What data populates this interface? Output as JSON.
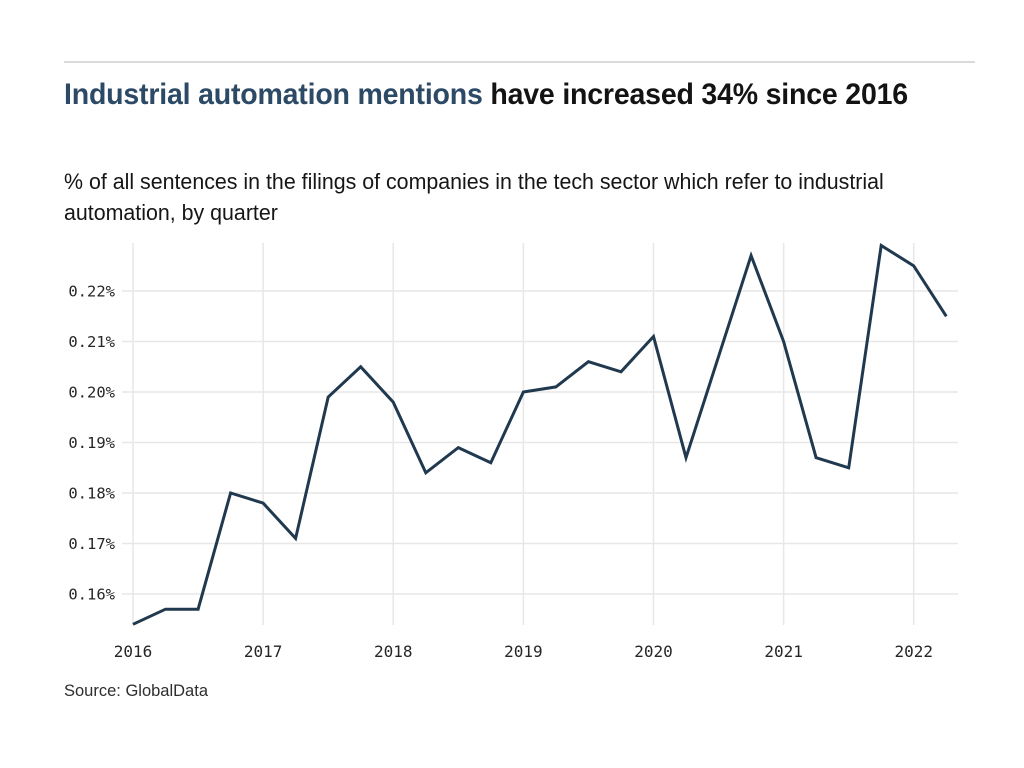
{
  "header": {
    "title_highlight": "Industrial automation mentions",
    "title_rest": " have increased 34% since 2016",
    "subtitle": "% of all sentences in the filings of companies in the tech sector which refer to industrial automation, by quarter"
  },
  "footer": {
    "source": "Source: GlobalData"
  },
  "colors": {
    "background": "#ffffff",
    "title_highlight": "#2c4a66",
    "heading_text": "#131313",
    "line": "#20394f",
    "grid": "#e7e7e7",
    "tick_label": "#262626",
    "rule": "#dadada",
    "source_text": "#2e2e2e"
  },
  "chart_data": {
    "type": "line",
    "title": "Industrial automation mentions have increased 34% since 2016",
    "subtitle": "% of all sentences in the filings of companies in the tech sector which refer to industrial automation, by quarter",
    "source": "Source: GlobalData",
    "unit": "%",
    "x": [
      "2016-Q1",
      "2016-Q2",
      "2016-Q3",
      "2016-Q4",
      "2017-Q1",
      "2017-Q2",
      "2017-Q3",
      "2017-Q4",
      "2018-Q1",
      "2018-Q2",
      "2018-Q3",
      "2018-Q4",
      "2019-Q1",
      "2019-Q2",
      "2019-Q3",
      "2019-Q4",
      "2020-Q1",
      "2020-Q2",
      "2020-Q3",
      "2020-Q4",
      "2021-Q1",
      "2021-Q2",
      "2021-Q3",
      "2021-Q4",
      "2022-Q1",
      "2022-Q2"
    ],
    "values": [
      0.154,
      0.157,
      0.157,
      0.18,
      0.178,
      0.171,
      0.199,
      0.205,
      0.198,
      0.184,
      0.189,
      0.186,
      0.2,
      0.201,
      0.206,
      0.204,
      0.211,
      0.187,
      0.207,
      0.227,
      0.21,
      0.187,
      0.185,
      0.229,
      0.225,
      0.215
    ],
    "x_tick_labels": [
      "2016",
      "2017",
      "2018",
      "2019",
      "2020",
      "2021",
      "2022"
    ],
    "y_ticks": [
      0.16,
      0.17,
      0.18,
      0.19,
      0.2,
      0.21,
      0.22
    ],
    "y_tick_labels": [
      "0.16%",
      "0.17%",
      "0.18%",
      "0.19%",
      "0.20%",
      "0.21%",
      "0.22%"
    ],
    "ylim": [
      0.152,
      0.231
    ],
    "grid": true,
    "legend": false
  }
}
